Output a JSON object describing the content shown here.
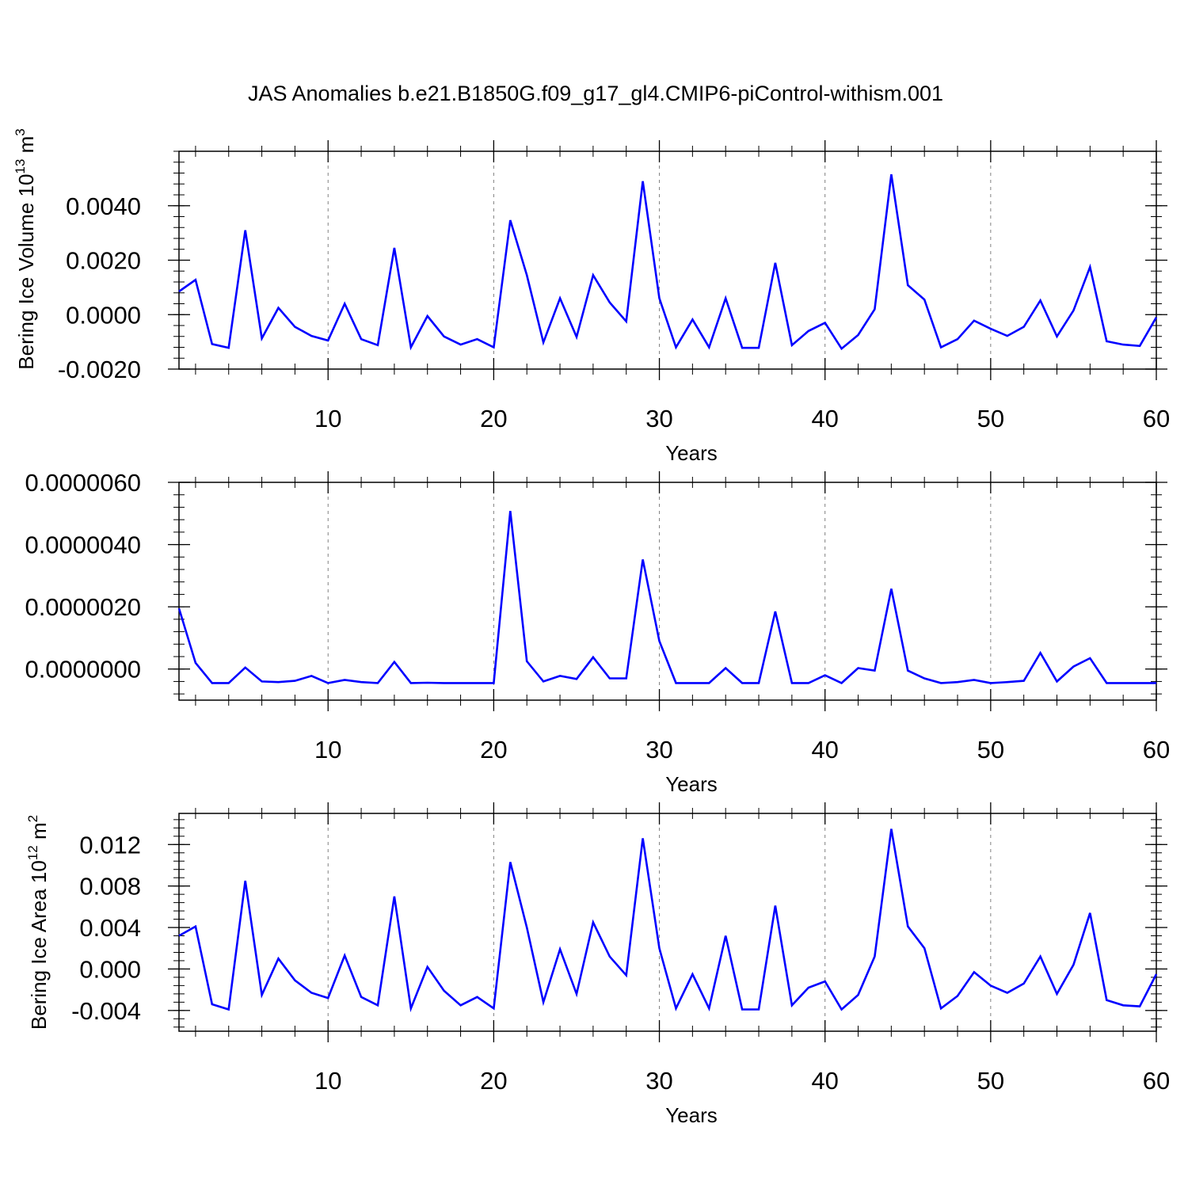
{
  "title": "JAS Anomalies b.e21.B1850G.f09_g17_gl4.CMIP6-piControl-withism.001",
  "colors": {
    "line": "#0000ff",
    "axis": "#000000",
    "grid": "#808080"
  },
  "chart_data": [
    {
      "type": "line",
      "title": "JAS Anomalies b.e21.B1850G.f09_g17_gl4.CMIP6-piControl-withism.001",
      "xlabel": "Years",
      "ylabel": "Bering Ice Volume 10",
      "ylabel_sup": "13",
      "ylabel_unit": "m",
      "ylabel_unit_sup": "3",
      "xlim": [
        1,
        60
      ],
      "ylim": [
        -0.002,
        0.006
      ],
      "xticks": [
        10,
        20,
        30,
        40,
        50,
        60
      ],
      "xtick_labels": [
        "10",
        "20",
        "30",
        "40",
        "50",
        "60"
      ],
      "yticks": [
        -0.002,
        0.0,
        0.002,
        0.004
      ],
      "ytick_labels": [
        "-0.0020",
        "0.0000",
        "0.0020",
        "0.0040"
      ],
      "grid": "vertical dashed at major x ticks",
      "series": [
        {
          "x": [
            1,
            2,
            3,
            4,
            5,
            6,
            7,
            8,
            9,
            10,
            11,
            12,
            13,
            14,
            15,
            16,
            17,
            18,
            19,
            20,
            21,
            22,
            23,
            24,
            25,
            26,
            27,
            28,
            29,
            30,
            31,
            32,
            33,
            34,
            35,
            36,
            37,
            38,
            39,
            40,
            41,
            42,
            43,
            44,
            45,
            46,
            47,
            48,
            49,
            50,
            51,
            52,
            53,
            54,
            55,
            56,
            57,
            58,
            59,
            60
          ],
          "values": [
            0.00085,
            0.00128,
            -0.00108,
            -0.00122,
            0.0031,
            -0.00087,
            0.00025,
            -0.00045,
            -0.00078,
            -0.00095,
            0.0004,
            -0.0009,
            -0.00112,
            0.00245,
            -0.0012,
            -5e-05,
            -0.0008,
            -0.0011,
            -0.0009,
            -0.0012,
            0.00347,
            0.00145,
            -0.00102,
            0.0006,
            -0.00082,
            0.00145,
            0.00045,
            -0.00025,
            0.0049,
            0.0006,
            -0.0012,
            -0.00018,
            -0.0012,
            0.0006,
            -0.00122,
            -0.00122,
            0.0019,
            -0.00112,
            -0.0006,
            -0.0003,
            -0.00125,
            -0.00075,
            0.0002,
            0.00515,
            0.00108,
            0.00055,
            -0.0012,
            -0.0009,
            -0.00022,
            -0.00052,
            -0.00078,
            -0.00045,
            0.00052,
            -0.0008,
            0.00015,
            0.00175,
            -0.00098,
            -0.0011,
            -0.00115,
            -0.0001
          ]
        }
      ]
    },
    {
      "type": "line",
      "xlabel": "Years",
      "ylabel": "",
      "xlim": [
        1,
        60
      ],
      "ylim": [
        -1e-06,
        6e-06
      ],
      "xticks": [
        10,
        20,
        30,
        40,
        50,
        60
      ],
      "xtick_labels": [
        "10",
        "20",
        "30",
        "40",
        "50",
        "60"
      ],
      "yticks": [
        0.0,
        2e-06,
        4e-06,
        6e-06
      ],
      "ytick_labels": [
        "0.0000000",
        "0.0000020",
        "0.0000040",
        "0.0000060"
      ],
      "grid": "vertical dashed at major x ticks",
      "series": [
        {
          "x": [
            1,
            2,
            3,
            4,
            5,
            6,
            7,
            8,
            9,
            10,
            11,
            12,
            13,
            14,
            15,
            16,
            17,
            18,
            19,
            20,
            21,
            22,
            23,
            24,
            25,
            26,
            27,
            28,
            29,
            30,
            31,
            32,
            33,
            34,
            35,
            36,
            37,
            38,
            39,
            40,
            41,
            42,
            43,
            44,
            45,
            46,
            47,
            48,
            49,
            50,
            51,
            52,
            53,
            54,
            55,
            56,
            57,
            58,
            59,
            60
          ],
          "values": [
            1.95e-06,
            2e-07,
            -4.5e-07,
            -4.5e-07,
            5e-08,
            -4e-07,
            -4.2e-07,
            -3.8e-07,
            -2.2e-07,
            -4.5e-07,
            -3.5e-07,
            -4.2e-07,
            -4.5e-07,
            2.3e-07,
            -4.5e-07,
            -4.4e-07,
            -4.5e-07,
            -4.5e-07,
            -4.5e-07,
            -4.5e-07,
            5.08e-06,
            2.5e-07,
            -4e-07,
            -2.2e-07,
            -3.2e-07,
            3.8e-07,
            -3e-07,
            -3e-07,
            3.52e-06,
            9e-07,
            -4.5e-07,
            -4.5e-07,
            -4.5e-07,
            3e-08,
            -4.5e-07,
            -4.5e-07,
            1.85e-06,
            -4.5e-07,
            -4.5e-07,
            -2e-07,
            -4.5e-07,
            3e-08,
            -5e-08,
            2.58e-06,
            -5e-08,
            -3e-07,
            -4.5e-07,
            -4.2e-07,
            -3.5e-07,
            -4.5e-07,
            -4.2e-07,
            -3.8e-07,
            5.2e-07,
            -4e-07,
            8e-08,
            3.5e-07,
            -4.5e-07,
            -4.5e-07,
            -4.5e-07,
            -4.5e-07
          ]
        }
      ]
    },
    {
      "type": "line",
      "xlabel": "Years",
      "ylabel": "Bering Ice Area 10",
      "ylabel_sup": "12",
      "ylabel_unit": "m",
      "ylabel_unit_sup": "2",
      "xlim": [
        1,
        60
      ],
      "ylim": [
        -0.006,
        0.015
      ],
      "xticks": [
        10,
        20,
        30,
        40,
        50,
        60
      ],
      "xtick_labels": [
        "10",
        "20",
        "30",
        "40",
        "50",
        "60"
      ],
      "yticks": [
        -0.004,
        0.0,
        0.004,
        0.008,
        0.012
      ],
      "ytick_labels": [
        "-0.004",
        "0.000",
        "0.004",
        "0.008",
        "0.012"
      ],
      "grid": "vertical dashed at major x ticks",
      "series": [
        {
          "x": [
            1,
            2,
            3,
            4,
            5,
            6,
            7,
            8,
            9,
            10,
            11,
            12,
            13,
            14,
            15,
            16,
            17,
            18,
            19,
            20,
            21,
            22,
            23,
            24,
            25,
            26,
            27,
            28,
            29,
            30,
            31,
            32,
            33,
            34,
            35,
            36,
            37,
            38,
            39,
            40,
            41,
            42,
            43,
            44,
            45,
            46,
            47,
            48,
            49,
            50,
            51,
            52,
            53,
            54,
            55,
            56,
            57,
            58,
            59,
            60
          ],
          "values": [
            0.0032,
            0.0041,
            -0.0034,
            -0.0039,
            0.0085,
            -0.0025,
            0.001,
            -0.0011,
            -0.0023,
            -0.0028,
            0.0013,
            -0.0027,
            -0.0035,
            0.007,
            -0.0038,
            0.0002,
            -0.0021,
            -0.0035,
            -0.0027,
            -0.0038,
            0.0103,
            0.004,
            -0.0032,
            0.0019,
            -0.0024,
            0.0045,
            0.0012,
            -0.0006,
            0.0126,
            0.002,
            -0.0038,
            -0.0005,
            -0.0038,
            0.0032,
            -0.0039,
            -0.0039,
            0.0061,
            -0.0035,
            -0.0018,
            -0.0012,
            -0.0039,
            -0.0025,
            0.0012,
            0.0135,
            0.0041,
            0.002,
            -0.0038,
            -0.0026,
            -0.0003,
            -0.0016,
            -0.0023,
            -0.0014,
            0.0012,
            -0.0024,
            0.0004,
            0.0054,
            -0.003,
            -0.0035,
            -0.0036,
            -0.0005
          ]
        }
      ]
    }
  ]
}
